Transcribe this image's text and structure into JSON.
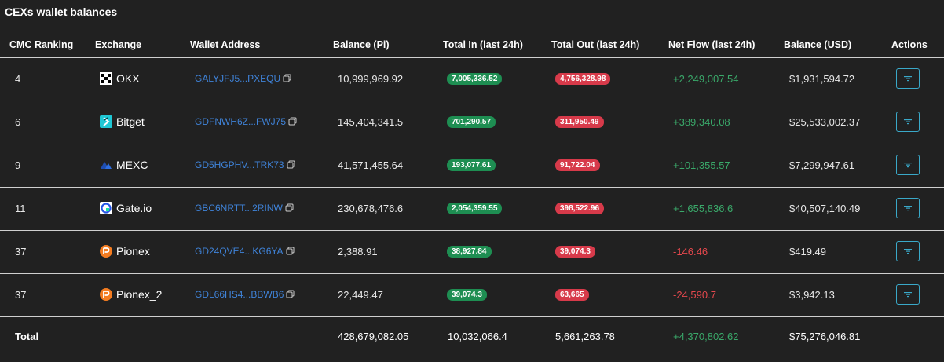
{
  "title": "CEXs wallet balances",
  "headers": {
    "cmc_ranking": "CMC Ranking",
    "exchange": "Exchange",
    "wallet_address": "Wallet Address",
    "balance_pi": "Balance (Pi)",
    "total_in": "Total In (last 24h)",
    "total_out": "Total Out (last 24h)",
    "net_flow": "Net Flow (last 24h)",
    "balance_usd": "Balance (USD)",
    "actions": "Actions"
  },
  "rows": [
    {
      "rank": "4",
      "exchange": "OKX",
      "logo": "okx-logo",
      "address": "GALYJFJ5...PXEQU",
      "balance_pi": "10,999,969.92",
      "total_in": "7,005,336.52",
      "total_out": "4,756,328.98",
      "net_flow": "+2,249,007.54",
      "net_sign": "positive",
      "balance_usd": "$1,931,594.72"
    },
    {
      "rank": "6",
      "exchange": "Bitget",
      "logo": "bitget-logo",
      "address": "GDFNWH6Z...FWJ75",
      "balance_pi": "145,404,341.5",
      "total_in": "701,290.57",
      "total_out": "311,950.49",
      "net_flow": "+389,340.08",
      "net_sign": "positive",
      "balance_usd": "$25,533,002.37"
    },
    {
      "rank": "9",
      "exchange": "MEXC",
      "logo": "mexc-logo",
      "address": "GD5HGPHV...TRK73",
      "balance_pi": "41,571,455.64",
      "total_in": "193,077.61",
      "total_out": "91,722.04",
      "net_flow": "+101,355.57",
      "net_sign": "positive",
      "balance_usd": "$7,299,947.61"
    },
    {
      "rank": "11",
      "exchange": "Gate.io",
      "logo": "gateio-logo",
      "address": "GBC6NRTT...2RINW",
      "balance_pi": "230,678,476.6",
      "total_in": "2,054,359.55",
      "total_out": "398,522.96",
      "net_flow": "+1,655,836.6",
      "net_sign": "positive",
      "balance_usd": "$40,507,140.49"
    },
    {
      "rank": "37",
      "exchange": "Pionex",
      "logo": "pionex-logo",
      "address": "GD24QVE4...KG6YA",
      "balance_pi": "2,388.91",
      "total_in": "38,927.84",
      "total_out": "39,074.3",
      "net_flow": "-146.46",
      "net_sign": "negative",
      "balance_usd": "$419.49"
    },
    {
      "rank": "37",
      "exchange": "Pionex_2",
      "logo": "pionex-logo",
      "address": "GDL66HS4...BBWB6",
      "balance_pi": "22,449.47",
      "total_in": "39,074.3",
      "total_out": "63,665",
      "net_flow": "-24,590.7",
      "net_sign": "negative",
      "balance_usd": "$3,942.13"
    }
  ],
  "total": {
    "label": "Total",
    "balance_pi": "428,679,082.05",
    "total_in": "10,032,066.4",
    "total_out": "5,661,263.78",
    "net_flow": "+4,370,802.62",
    "balance_usd": "$75,276,046.81"
  },
  "colors": {
    "background": "#212121",
    "address": "#3f83d9",
    "in_pill": "#1e8e52",
    "out_pill": "#d73a4a",
    "positive": "#3aa96a",
    "negative": "#e5484d",
    "action_border": "#3aa9c9"
  },
  "icons": {
    "copy": "copy-icon",
    "action": "filter-icon"
  }
}
